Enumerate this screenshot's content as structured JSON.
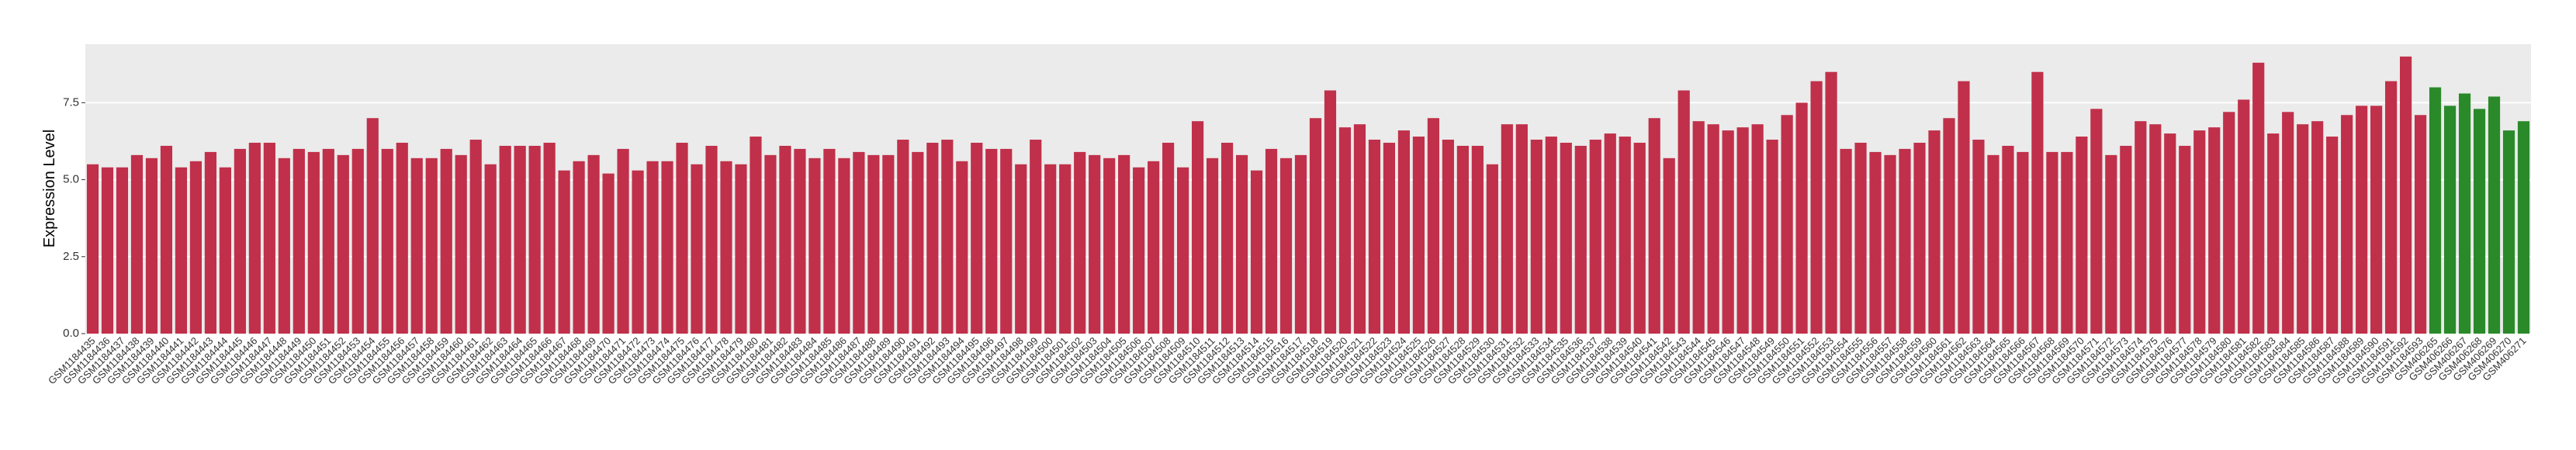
{
  "chart_data": {
    "type": "bar",
    "y_label": "Expression Level",
    "categories": [
      "GSM1184435",
      "GSM1184436",
      "GSM1184437",
      "GSM1184438",
      "GSM1184439",
      "GSM1184440",
      "GSM1184441",
      "GSM1184442",
      "GSM1184443",
      "GSM1184444",
      "GSM1184445",
      "GSM1184446",
      "GSM1184447",
      "GSM1184448",
      "GSM1184449",
      "GSM1184450",
      "GSM1184451",
      "GSM1184452",
      "GSM1184453",
      "GSM1184454",
      "GSM1184455",
      "GSM1184456",
      "GSM1184457",
      "GSM1184458",
      "GSM1184459",
      "GSM1184460",
      "GSM1184461",
      "GSM1184462",
      "GSM1184463",
      "GSM1184464",
      "GSM1184465",
      "GSM1184466",
      "GSM1184467",
      "GSM1184468",
      "GSM1184469",
      "GSM1184470",
      "GSM1184471",
      "GSM1184472",
      "GSM1184473",
      "GSM1184474",
      "GSM1184475",
      "GSM1184476",
      "GSM1184477",
      "GSM1184478",
      "GSM1184479",
      "GSM1184480",
      "GSM1184481",
      "GSM1184482",
      "GSM1184483",
      "GSM1184484",
      "GSM1184485",
      "GSM1184486",
      "GSM1184487",
      "GSM1184488",
      "GSM1184489",
      "GSM1184490",
      "GSM1184491",
      "GSM1184492",
      "GSM1184493",
      "GSM1184494",
      "GSM1184495",
      "GSM1184496",
      "GSM1184497",
      "GSM1184498",
      "GSM1184499",
      "GSM1184500",
      "GSM1184501",
      "GSM1184502",
      "GSM1184503",
      "GSM1184504",
      "GSM1184505",
      "GSM1184506",
      "GSM1184507",
      "GSM1184508",
      "GSM1184509",
      "GSM1184510",
      "GSM1184511",
      "GSM1184512",
      "GSM1184513",
      "GSM1184514",
      "GSM1184515",
      "GSM1184516",
      "GSM1184517",
      "GSM1184518",
      "GSM1184519",
      "GSM1184520",
      "GSM1184521",
      "GSM1184522",
      "GSM1184523",
      "GSM1184524",
      "GSM1184525",
      "GSM1184526",
      "GSM1184527",
      "GSM1184528",
      "GSM1184529",
      "GSM1184530",
      "GSM1184531",
      "GSM1184532",
      "GSM1184533",
      "GSM1184534",
      "GSM1184535",
      "GSM1184536",
      "GSM1184537",
      "GSM1184538",
      "GSM1184539",
      "GSM1184540",
      "GSM1184541",
      "GSM1184542",
      "GSM1184543",
      "GSM1184544",
      "GSM1184545",
      "GSM1184546",
      "GSM1184547",
      "GSM1184548",
      "GSM1184549",
      "GSM1184550",
      "GSM1184551",
      "GSM1184552",
      "GSM1184553",
      "GSM1184554",
      "GSM1184555",
      "GSM1184556",
      "GSM1184557",
      "GSM1184558",
      "GSM1184559",
      "GSM1184560",
      "GSM1184561",
      "GSM1184562",
      "GSM1184563",
      "GSM1184564",
      "GSM1184565",
      "GSM1184566",
      "GSM1184567",
      "GSM1184568",
      "GSM1184569",
      "GSM1184570",
      "GSM1184571",
      "GSM1184572",
      "GSM1184573",
      "GSM1184574",
      "GSM1184575",
      "GSM1184576",
      "GSM1184577",
      "GSM1184578",
      "GSM1184579",
      "GSM1184580",
      "GSM1184581",
      "GSM1184582",
      "GSM1184583",
      "GSM1184584",
      "GSM1184585",
      "GSM1184586",
      "GSM1184587",
      "GSM1184588",
      "GSM1184589",
      "GSM1184590",
      "GSM1184591",
      "GSM1184592",
      "GSM1184593",
      "GSM406265",
      "GSM406266",
      "GSM406267",
      "GSM406268",
      "GSM406269",
      "GSM406270",
      "GSM406271"
    ],
    "values": [
      5.5,
      5.4,
      5.4,
      5.8,
      5.7,
      6.1,
      5.4,
      5.6,
      5.9,
      5.4,
      6.0,
      6.2,
      6.2,
      5.7,
      6.0,
      5.9,
      6.0,
      5.8,
      6.0,
      7.0,
      6.0,
      6.2,
      5.7,
      5.7,
      6.0,
      5.8,
      6.3,
      5.5,
      6.1,
      6.1,
      6.1,
      6.2,
      5.3,
      5.6,
      5.8,
      5.2,
      6.0,
      5.3,
      5.6,
      5.6,
      6.2,
      5.5,
      6.1,
      5.6,
      5.5,
      6.4,
      5.8,
      6.1,
      6.0,
      5.7,
      6.0,
      5.7,
      5.9,
      5.8,
      5.8,
      6.3,
      5.9,
      6.2,
      6.3,
      5.6,
      6.2,
      6.0,
      6.0,
      5.5,
      6.3,
      5.5,
      5.5,
      5.9,
      5.8,
      5.7,
      5.8,
      5.4,
      5.6,
      6.2,
      5.4,
      6.9,
      5.7,
      6.2,
      5.8,
      5.3,
      6.0,
      5.7,
      5.8,
      7.0,
      7.9,
      6.7,
      6.8,
      6.3,
      6.2,
      6.6,
      6.4,
      7.0,
      6.3,
      6.1,
      6.1,
      5.5,
      6.8,
      6.8,
      6.3,
      6.4,
      6.2,
      6.1,
      6.3,
      6.5,
      6.4,
      6.2,
      7.0,
      5.7,
      7.9,
      6.9,
      6.8,
      6.6,
      6.7,
      6.8,
      6.3,
      7.1,
      7.5,
      8.2,
      8.5,
      6.0,
      6.2,
      5.9,
      5.8,
      6.0,
      6.2,
      6.6,
      7.0,
      8.2,
      6.3,
      5.8,
      6.1,
      5.9,
      8.5,
      5.9,
      5.9,
      6.4,
      7.3,
      5.8,
      6.1,
      6.9,
      6.8,
      6.5,
      6.1,
      6.6,
      6.7,
      7.2,
      7.6,
      8.8,
      6.5,
      7.2,
      6.8,
      6.9,
      6.4,
      7.1,
      7.4,
      7.4,
      8.2,
      9.0,
      7.1,
      8.0,
      7.4,
      7.8,
      7.3,
      7.7,
      6.6,
      6.9
    ],
    "colors": [
      "#c0304a",
      "#c0304a",
      "#c0304a",
      "#c0304a",
      "#c0304a",
      "#c0304a",
      "#c0304a",
      "#c0304a",
      "#c0304a",
      "#c0304a",
      "#c0304a",
      "#c0304a",
      "#c0304a",
      "#c0304a",
      "#c0304a",
      "#c0304a",
      "#c0304a",
      "#c0304a",
      "#c0304a",
      "#c0304a",
      "#c0304a",
      "#c0304a",
      "#c0304a",
      "#c0304a",
      "#c0304a",
      "#c0304a",
      "#c0304a",
      "#c0304a",
      "#c0304a",
      "#c0304a",
      "#c0304a",
      "#c0304a",
      "#c0304a",
      "#c0304a",
      "#c0304a",
      "#c0304a",
      "#c0304a",
      "#c0304a",
      "#c0304a",
      "#c0304a",
      "#c0304a",
      "#c0304a",
      "#c0304a",
      "#c0304a",
      "#c0304a",
      "#c0304a",
      "#c0304a",
      "#c0304a",
      "#c0304a",
      "#c0304a",
      "#c0304a",
      "#c0304a",
      "#c0304a",
      "#c0304a",
      "#c0304a",
      "#c0304a",
      "#c0304a",
      "#c0304a",
      "#c0304a",
      "#c0304a",
      "#c0304a",
      "#c0304a",
      "#c0304a",
      "#c0304a",
      "#c0304a",
      "#c0304a",
      "#c0304a",
      "#c0304a",
      "#c0304a",
      "#c0304a",
      "#c0304a",
      "#c0304a",
      "#c0304a",
      "#c0304a",
      "#c0304a",
      "#c0304a",
      "#c0304a",
      "#c0304a",
      "#c0304a",
      "#c0304a",
      "#c0304a",
      "#c0304a",
      "#c0304a",
      "#c0304a",
      "#c0304a",
      "#c0304a",
      "#c0304a",
      "#c0304a",
      "#c0304a",
      "#c0304a",
      "#c0304a",
      "#c0304a",
      "#c0304a",
      "#c0304a",
      "#c0304a",
      "#c0304a",
      "#c0304a",
      "#c0304a",
      "#c0304a",
      "#c0304a",
      "#c0304a",
      "#c0304a",
      "#c0304a",
      "#c0304a",
      "#c0304a",
      "#c0304a",
      "#c0304a",
      "#c0304a",
      "#c0304a",
      "#c0304a",
      "#c0304a",
      "#c0304a",
      "#c0304a",
      "#c0304a",
      "#c0304a",
      "#c0304a",
      "#c0304a",
      "#c0304a",
      "#c0304a",
      "#c0304a",
      "#c0304a",
      "#c0304a",
      "#c0304a",
      "#c0304a",
      "#c0304a",
      "#c0304a",
      "#c0304a",
      "#c0304a",
      "#c0304a",
      "#c0304a",
      "#c0304a",
      "#c0304a",
      "#c0304a",
      "#c0304a",
      "#c0304a",
      "#c0304a",
      "#c0304a",
      "#c0304a",
      "#c0304a",
      "#c0304a",
      "#c0304a",
      "#c0304a",
      "#c0304a",
      "#c0304a",
      "#c0304a",
      "#c0304a",
      "#c0304a",
      "#c0304a",
      "#c0304a",
      "#c0304a",
      "#c0304a",
      "#c0304a",
      "#c0304a",
      "#c0304a",
      "#c0304a",
      "#c0304a",
      "#c0304a",
      "#c0304a",
      "#c0304a",
      "#2a8a2a",
      "#2a8a2a",
      "#2a8a2a",
      "#2a8a2a",
      "#2a8a2a",
      "#2a8a2a",
      "#2a8a2a"
    ],
    "ylim": [
      0,
      9.4
    ],
    "yticks": [
      {
        "value": 0,
        "label": "0.0"
      },
      {
        "value": 2.5,
        "label": "2.5"
      },
      {
        "value": 5,
        "label": "5.0"
      },
      {
        "value": 7.5,
        "label": "7.5"
      }
    ],
    "grid": true
  }
}
